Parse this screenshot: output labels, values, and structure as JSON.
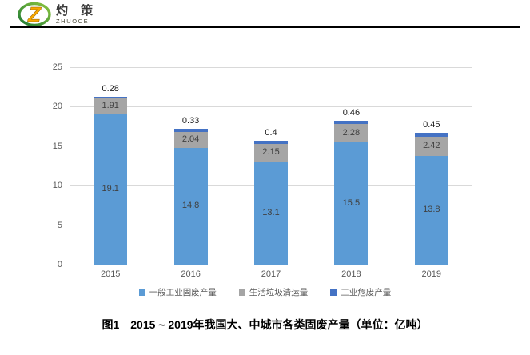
{
  "logo": {
    "brand_cn": "灼 策",
    "brand_en": "ZHUOCE",
    "icon_colors": {
      "ring_green_dark": "#1E7A34",
      "ring_green_light": "#8CC63F",
      "z_orange": "#F7A600"
    }
  },
  "chart_data": {
    "type": "bar",
    "stacked": true,
    "title": "图1　2015 ~ 2019年我国大、中城市各类固废产量（单位：亿吨）",
    "xlabel": "",
    "ylabel": "",
    "categories": [
      "2015",
      "2016",
      "2017",
      "2018",
      "2019"
    ],
    "series": [
      {
        "name": "一般工业固废产量",
        "color": "#5B9BD5",
        "label_position": "inside",
        "values": [
          19.1,
          14.8,
          13.1,
          15.5,
          13.8
        ]
      },
      {
        "name": "生活垃圾清运量",
        "color": "#A5A5A5",
        "label_position": "inside",
        "values": [
          1.91,
          2.04,
          2.15,
          2.28,
          2.42
        ]
      },
      {
        "name": "工业危废产量",
        "color": "#4472C4",
        "label_position": "outside-top",
        "values": [
          0.28,
          0.33,
          0.4,
          0.46,
          0.45
        ]
      }
    ],
    "ylim": [
      0,
      25
    ],
    "yticks": [
      0,
      5,
      10,
      15,
      20,
      25
    ],
    "grid": true,
    "legend_position": "bottom",
    "theme": {
      "gridline_color": "#D9D9D9",
      "axis_line_color": "#BFBFBF",
      "axis_text_color": "#595959",
      "data_label_color": "#404040",
      "header_rule_color": "#000000"
    }
  }
}
